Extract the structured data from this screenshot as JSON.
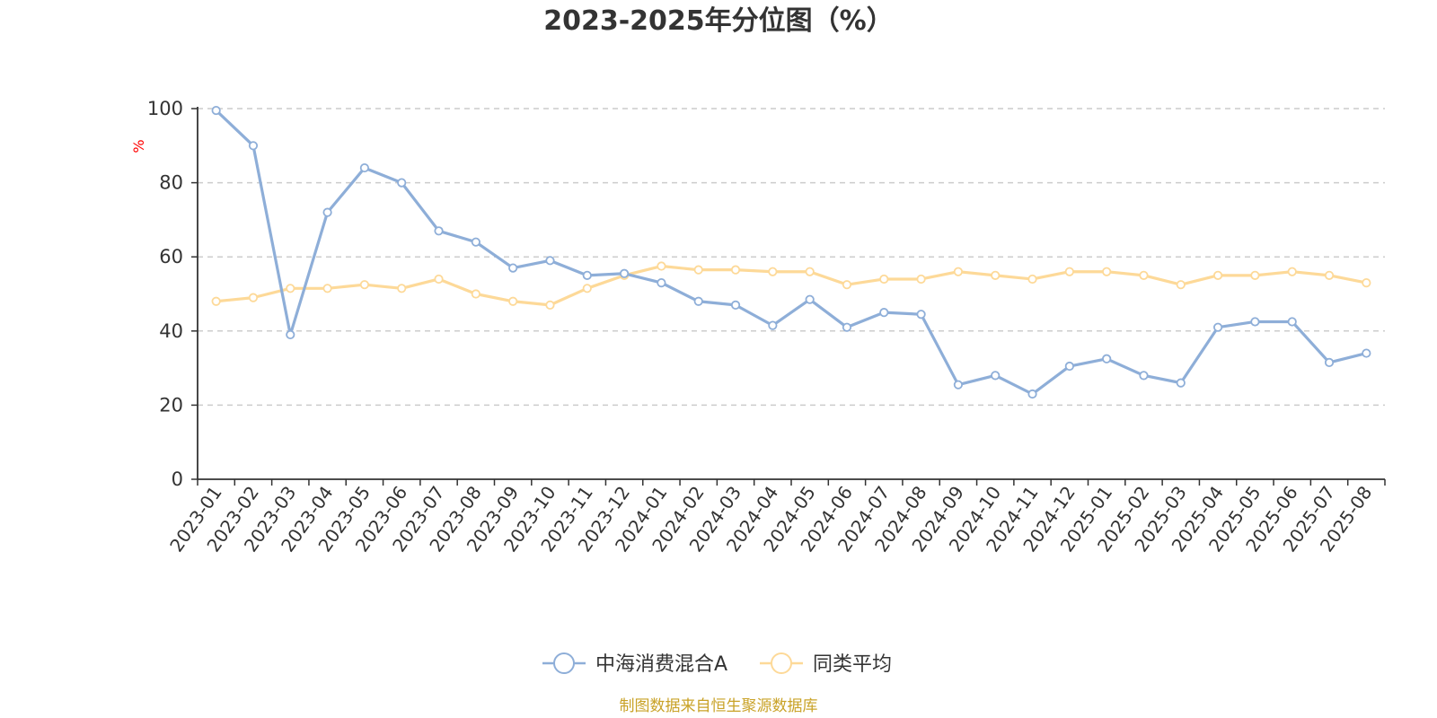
{
  "chart_data": {
    "type": "line",
    "title": "2023-2025年分位图（%）",
    "ylabel": "%",
    "xlabel": "",
    "ylim": [
      0,
      100
    ],
    "yticks": [
      0,
      20,
      40,
      60,
      80,
      100
    ],
    "grid": true,
    "legend_position": "bottom-center",
    "categories": [
      "2023-01",
      "2023-02",
      "2023-03",
      "2023-04",
      "2023-05",
      "2023-06",
      "2023-07",
      "2023-08",
      "2023-09",
      "2023-10",
      "2023-11",
      "2023-12",
      "2024-01",
      "2024-02",
      "2024-03",
      "2024-04",
      "2024-05",
      "2024-06",
      "2024-07",
      "2024-08",
      "2024-09",
      "2024-10",
      "2024-11",
      "2024-12",
      "2025-01",
      "2025-02",
      "2025-03",
      "2025-04",
      "2025-05",
      "2025-06",
      "2025-07",
      "2025-08"
    ],
    "series": [
      {
        "name": "中海消费混合A",
        "color": "#8eaed8",
        "values": [
          99.5,
          90,
          39,
          72,
          84,
          80,
          67,
          64,
          57,
          59,
          55,
          55.5,
          53,
          48,
          47,
          41.5,
          48.5,
          41,
          45,
          44.5,
          25.5,
          28,
          23,
          30.5,
          32.5,
          28,
          26,
          41,
          42.5,
          42.5,
          31.5,
          34
        ]
      },
      {
        "name": "同类平均",
        "color": "#fdd998",
        "values": [
          48,
          49,
          51.5,
          51.5,
          52.5,
          51.5,
          54,
          50,
          48,
          47,
          51.5,
          55,
          57.5,
          56.5,
          56.5,
          56,
          56,
          52.5,
          54,
          54,
          56,
          55,
          54,
          56,
          56,
          55,
          52.5,
          55,
          55,
          56,
          55,
          53
        ]
      }
    ],
    "source": "制图数据来自恒生聚源数据库"
  }
}
